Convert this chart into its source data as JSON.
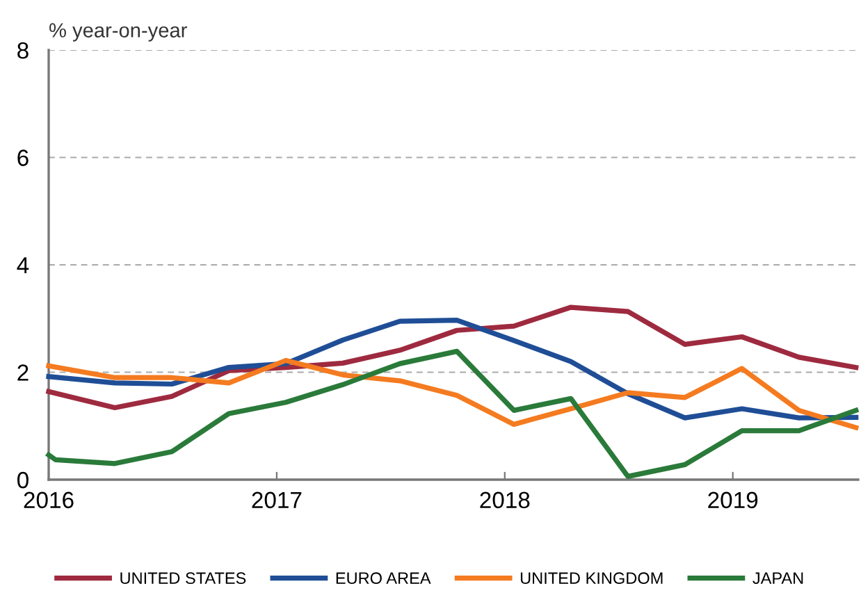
{
  "chart_data": {
    "type": "line",
    "ylabel": "% year-on-year",
    "x": [
      2016.0,
      2016.29,
      2016.54,
      2016.79,
      2017.04,
      2017.29,
      2017.54,
      2017.79,
      2018.04,
      2018.29,
      2018.54,
      2018.79,
      2019.04,
      2019.29,
      2019.54
    ],
    "series": [
      {
        "name": "UNITED STATES",
        "color": "#9e2a3f",
        "values": [
          1.64,
          1.34,
          1.55,
          2.03,
          2.09,
          2.17,
          2.41,
          2.78,
          2.86,
          3.21,
          3.13,
          2.52,
          2.66,
          2.28,
          2.09
        ]
      },
      {
        "name": "EURO AREA",
        "color": "#1f4e96",
        "values": [
          1.92,
          1.8,
          1.78,
          2.09,
          2.16,
          2.6,
          2.95,
          2.97,
          2.59,
          2.2,
          1.6,
          1.15,
          1.32,
          1.15,
          1.16
        ]
      },
      {
        "name": "UNITED KINGDOM",
        "color": "#f47b20",
        "values": [
          2.12,
          1.9,
          1.9,
          1.8,
          2.22,
          1.95,
          1.84,
          1.57,
          1.03,
          1.32,
          1.62,
          1.53,
          2.07,
          1.29,
          0.97
        ]
      },
      {
        "name": "JAPAN",
        "color": "#2a7a3a",
        "x": [
          2016.0,
          2016.03,
          2016.29,
          2016.54,
          2016.79,
          2017.04,
          2017.29,
          2017.54,
          2017.79,
          2018.04,
          2018.29,
          2018.54,
          2018.79,
          2019.04,
          2019.29,
          2019.54
        ],
        "values": [
          0.46,
          0.37,
          0.3,
          0.52,
          1.23,
          1.44,
          1.77,
          2.16,
          2.39,
          1.29,
          1.51,
          0.06,
          0.28,
          0.91,
          0.91,
          1.29
        ]
      }
    ],
    "xlim": [
      2016,
      2019.55
    ],
    "xticks": [
      2016,
      2017,
      2018,
      2019
    ],
    "ylim": [
      0,
      8
    ],
    "yticks": [
      0,
      2,
      4,
      6,
      8
    ],
    "grid": "y",
    "legend": "bottom",
    "marker": "none",
    "line_style": "solid"
  }
}
